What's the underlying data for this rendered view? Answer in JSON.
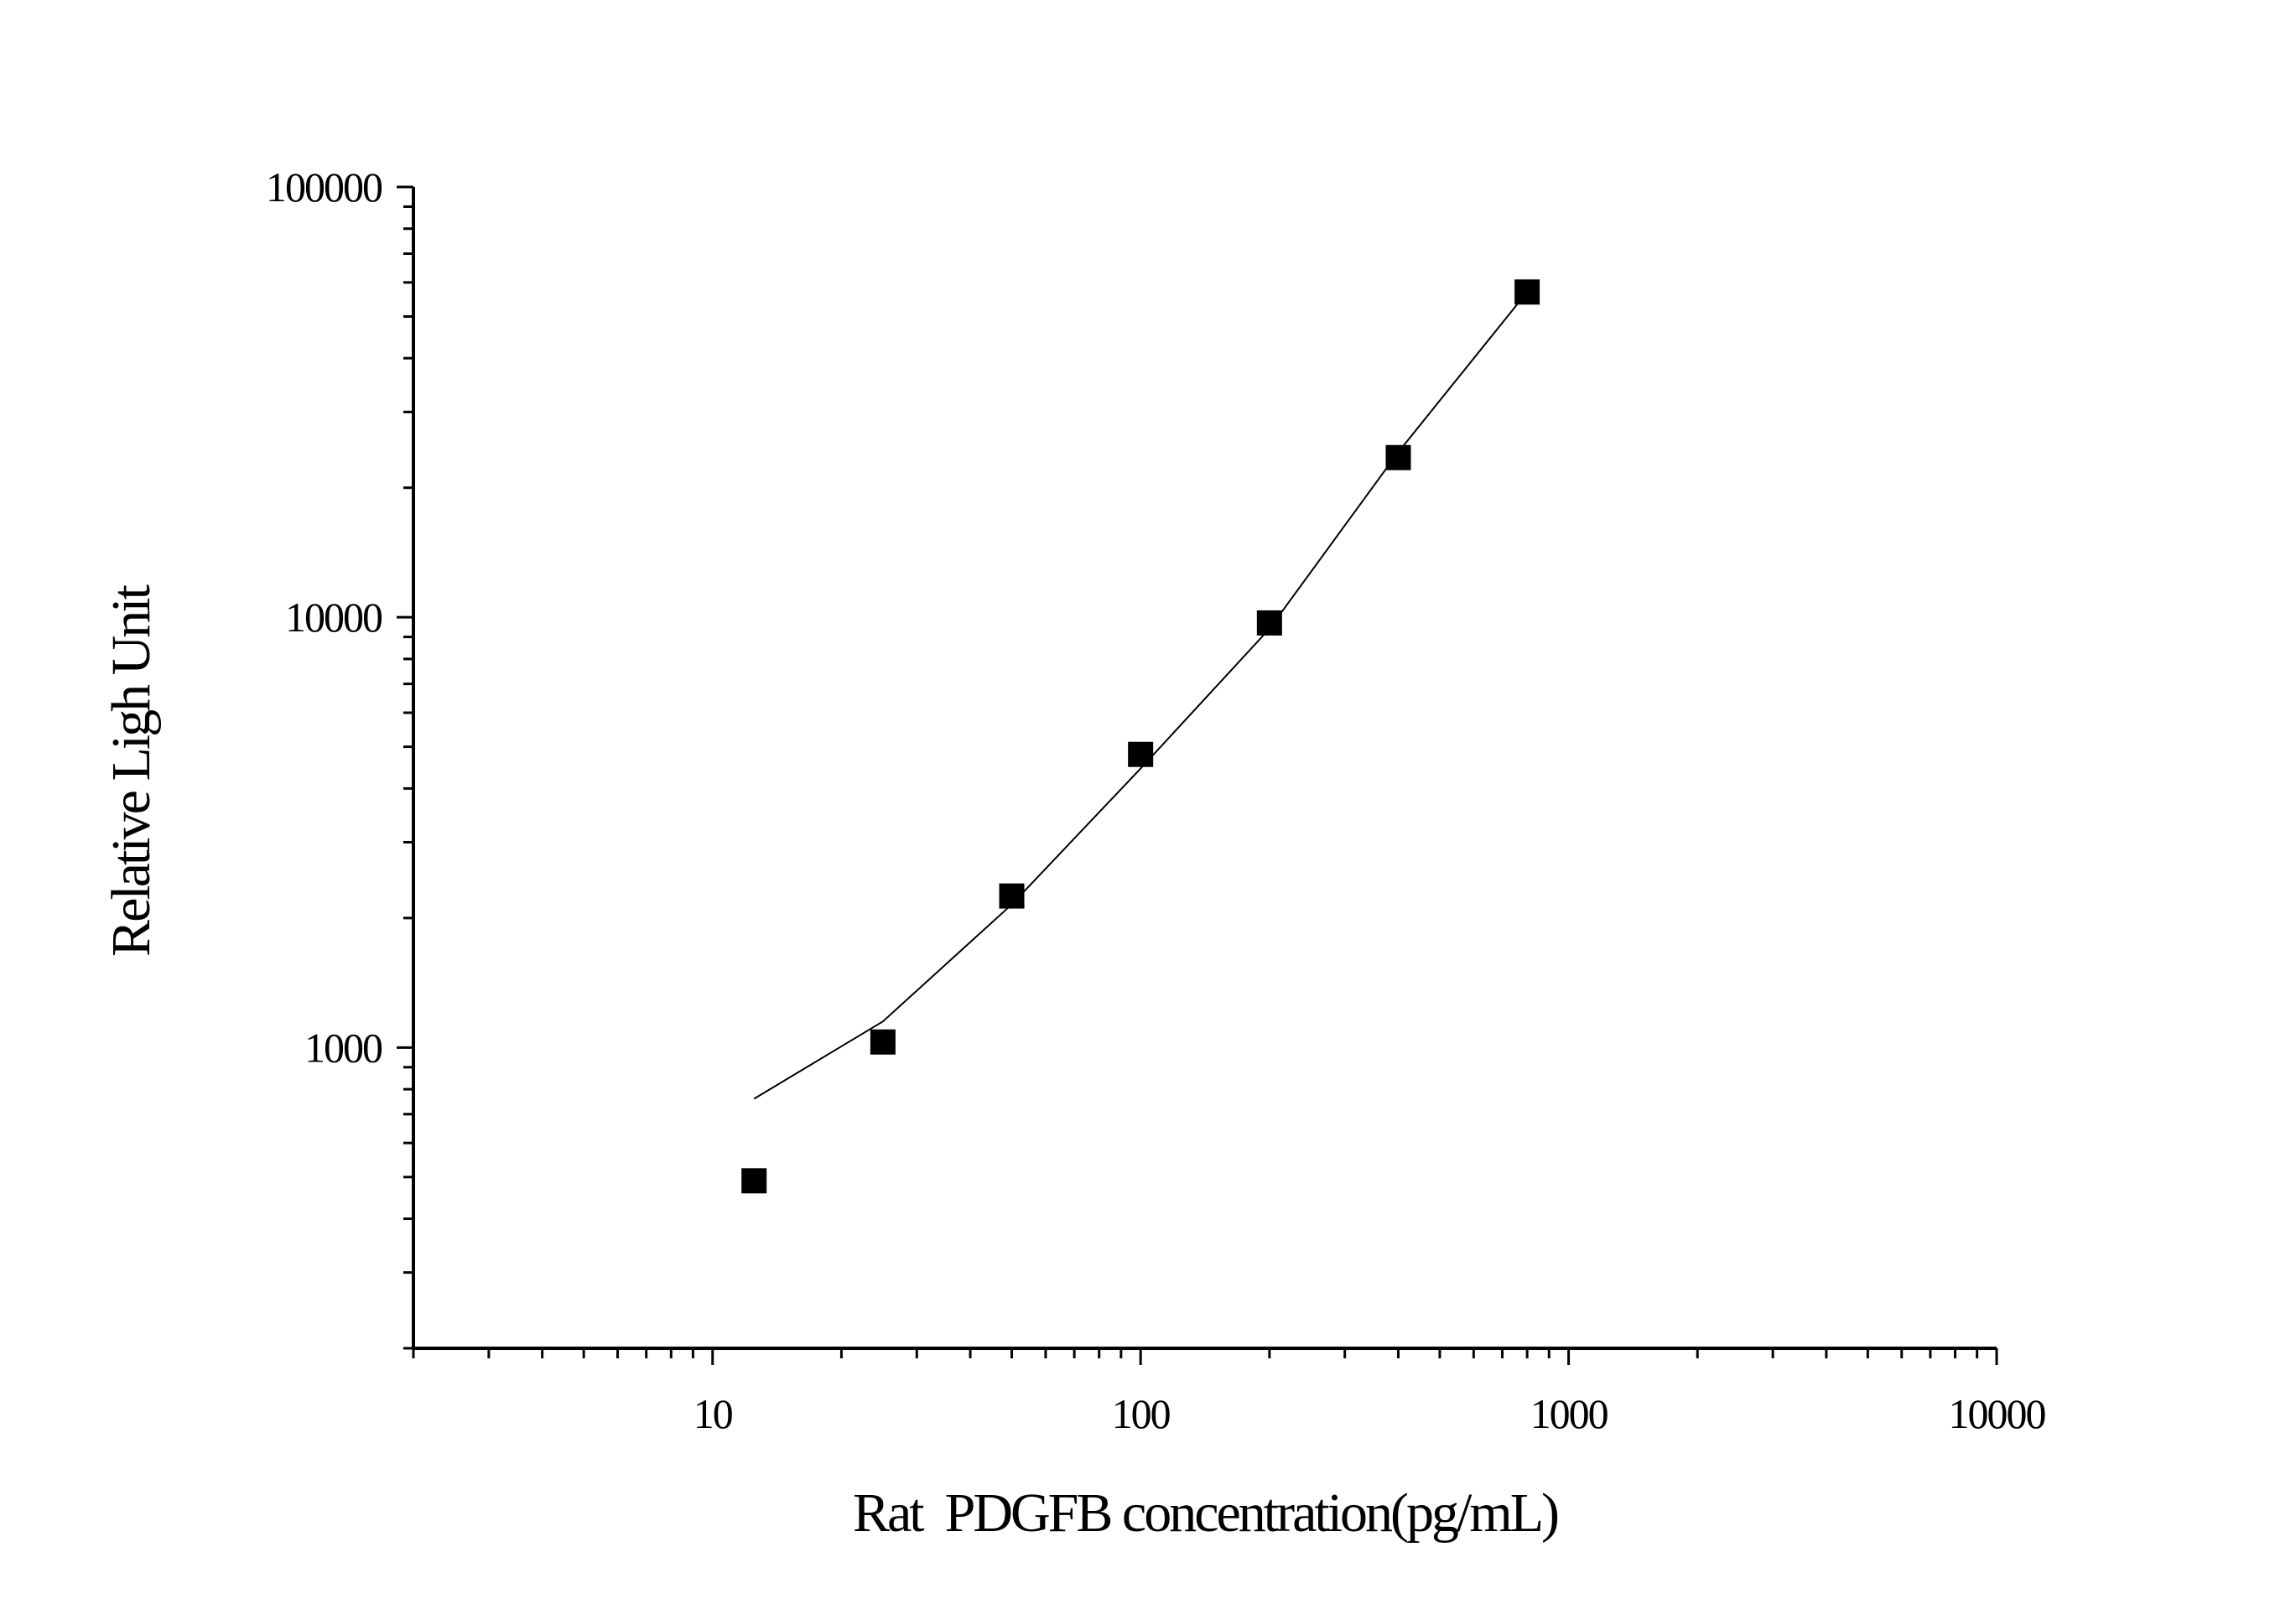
{
  "chart_data": {
    "type": "scatter",
    "xlabel": "Rat  PDGFB concentration(pg/mL)",
    "ylabel": "Relative Ligh Unit",
    "xscale": "log",
    "yscale": "log",
    "xlim": [
      2,
      10000
    ],
    "ylim": [
      200,
      100000
    ],
    "x_ticks": [
      10,
      100,
      1000,
      10000
    ],
    "x_tick_labels": [
      "10",
      "100",
      "1000",
      "10000"
    ],
    "y_ticks": [
      1000,
      10000,
      100000
    ],
    "y_tick_labels": [
      "1000",
      "10000",
      "100000"
    ],
    "grid": false,
    "legend": "none",
    "series": [
      {
        "marker": "square",
        "x": [
          12.5,
          25,
          50,
          100,
          200,
          400,
          800
        ],
        "y": [
          490,
          1030,
          2250,
          4800,
          9700,
          23500,
          57000
        ]
      }
    ],
    "fit_curve": {
      "x": [
        12.5,
        25,
        50,
        100,
        200,
        400,
        800
      ],
      "y": [
        760,
        1150,
        2150,
        4450,
        9400,
        24200,
        57000
      ]
    }
  }
}
